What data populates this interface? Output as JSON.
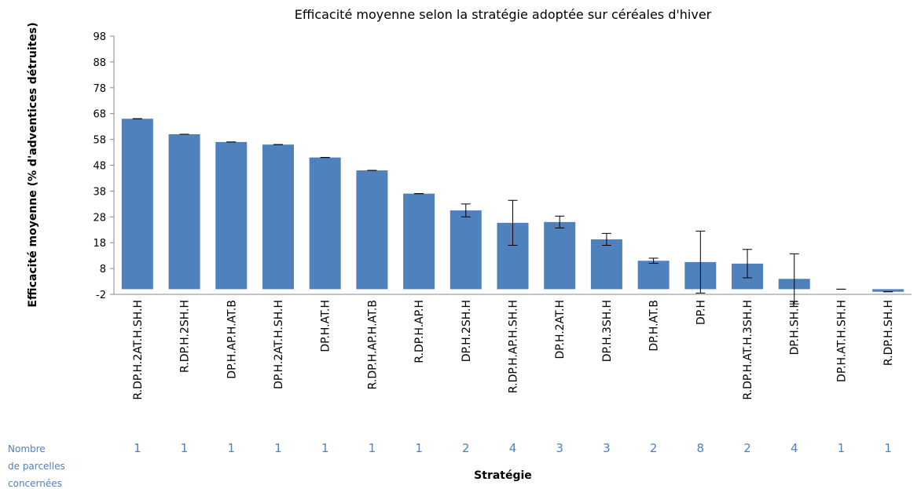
{
  "chart_data": {
    "type": "bar",
    "title": "Efficacité moyenne selon la stratégie adoptée sur céréales d'hiver",
    "y_label": "Efficacité moyenne (% d'adventices détruites)",
    "x_label": "Stratégie",
    "categories": [
      "R.DP.H.2AT.H.SH.H",
      "R.DP.H.2SH.H",
      "DP.H.AP.H.AT.B",
      "DP.H.2AT.H.SH.H",
      "DP.H.AT.H",
      "R.DP.H.AP.H.AT.B",
      "R.DP.H.AP.H",
      "DP.H.2SH.H",
      "R.DP.H.AP.H.SH.H",
      "DP.H.2AT.H",
      "DP.H.3SH.H",
      "DP.H.AT.B",
      "DP.H",
      "R.DP.H.AT.H.3SH.H",
      "DP.H.SH.H",
      "DP.H.AT.H.SH.H",
      "R.DP.H.SH.H"
    ],
    "values": [
      66,
      60,
      57,
      56,
      51,
      46,
      37,
      30.5,
      25.7,
      26,
      19.3,
      11,
      10.5,
      9.9,
      4,
      0,
      -1
    ],
    "errors": [
      0,
      0,
      0,
      0,
      0,
      0,
      0,
      2.5,
      8.7,
      2.3,
      2.3,
      1,
      12,
      5.5,
      9.7,
      0,
      0
    ],
    "color": "#4f81bd",
    "ylim": [
      -2,
      98
    ],
    "yticks": [
      -2,
      8,
      18,
      28,
      38,
      48,
      58,
      68,
      78,
      88,
      98
    ],
    "count_label": [
      "Nombre",
      "de parcelles",
      "concernées"
    ],
    "counts": [
      1,
      1,
      1,
      1,
      1,
      1,
      1,
      2,
      4,
      3,
      3,
      2,
      8,
      2,
      4,
      1,
      1
    ]
  }
}
